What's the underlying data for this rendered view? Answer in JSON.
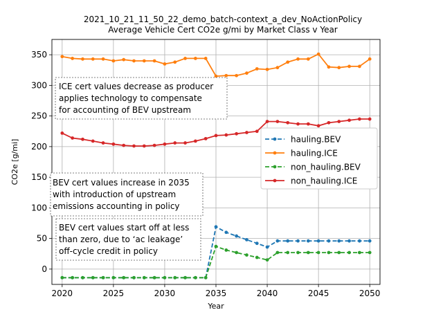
{
  "chart_data": {
    "type": "line",
    "title": "2021_10_21_11_50_22_demo_batch-context_a_dev_NoActionPolicy",
    "subtitle": "Average Vehicle Cert CO2e g/mi  by Market Class v Year",
    "xlabel": "Year",
    "ylabel": "CO2e [g/mi]",
    "xlim": [
      2019,
      2051
    ],
    "ylim": [
      -25,
      375
    ],
    "x_ticks": [
      2020,
      2025,
      2030,
      2035,
      2040,
      2045,
      2050
    ],
    "y_ticks": [
      0,
      50,
      100,
      150,
      200,
      250,
      300,
      350
    ],
    "grid": true,
    "legend_position": "center-right",
    "x": [
      2020,
      2021,
      2022,
      2023,
      2024,
      2025,
      2026,
      2027,
      2028,
      2029,
      2030,
      2031,
      2032,
      2033,
      2034,
      2035,
      2036,
      2037,
      2038,
      2039,
      2040,
      2041,
      2042,
      2043,
      2044,
      2045,
      2046,
      2047,
      2048,
      2049,
      2050
    ],
    "series": [
      {
        "name": "hauling.BEV",
        "color": "#1f77b4",
        "dashed": true,
        "values": [
          -14,
          -14,
          -14,
          -14,
          -14,
          -14,
          -14,
          -14,
          -14,
          -14,
          -14,
          -14,
          -14,
          -14,
          -14,
          69,
          60,
          54,
          48,
          42,
          36,
          46,
          46,
          46,
          46,
          46,
          46,
          46,
          46,
          46,
          46
        ]
      },
      {
        "name": "hauling.ICE",
        "color": "#ff7f0e",
        "dashed": false,
        "values": [
          347,
          344,
          343,
          343,
          343,
          340,
          342,
          340,
          340,
          340,
          335,
          338,
          344,
          344,
          344,
          315,
          316,
          316,
          320,
          327,
          326,
          329,
          338,
          343,
          343,
          351,
          330,
          329,
          331,
          331,
          343
        ]
      },
      {
        "name": "non_hauling.BEV",
        "color": "#2ca02c",
        "dashed": true,
        "values": [
          -14,
          -14,
          -14,
          -14,
          -14,
          -14,
          -14,
          -14,
          -14,
          -14,
          -14,
          -14,
          -14,
          -14,
          -14,
          37,
          31,
          27,
          23,
          19,
          15,
          27,
          27,
          27,
          27,
          27,
          27,
          27,
          27,
          27,
          27
        ]
      },
      {
        "name": "non_hauling.ICE",
        "color": "#d62728",
        "dashed": false,
        "values": [
          222,
          214,
          212,
          209,
          206,
          204,
          202,
          201,
          201,
          202,
          204,
          206,
          206,
          209,
          213,
          218,
          219,
          221,
          223,
          225,
          241,
          241,
          239,
          237,
          237,
          234,
          239,
          241,
          243,
          245,
          245
        ]
      }
    ],
    "annotations": [
      {
        "lines": [
          "ICE cert values decrease as producer",
          "applies technology to compensate",
          "for accounting of BEV upstream"
        ]
      },
      {
        "lines": [
          "BEV cert values increase in 2035",
          "with introduction of upstream",
          "emissions accounting in policy"
        ]
      },
      {
        "lines": [
          "BEV cert values start off at less",
          "than zero, due to ‘ac leakage’",
          "off-cycle credit in policy"
        ]
      }
    ]
  }
}
